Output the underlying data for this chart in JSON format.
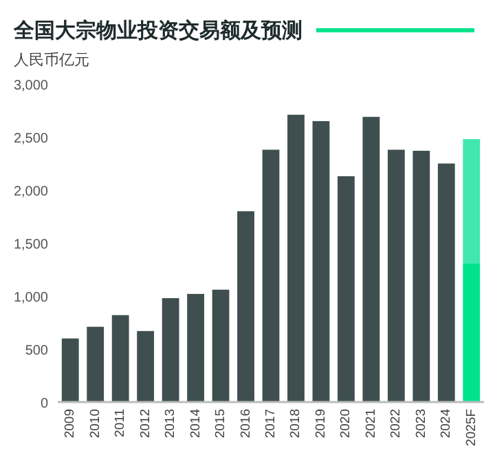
{
  "chart_data": {
    "type": "bar",
    "title": "全国大宗物业投资交易额及预测",
    "ylabel": "人民币亿元",
    "categories": [
      "2009",
      "2010",
      "2011",
      "2012",
      "2013",
      "2014",
      "2015",
      "2016",
      "2017",
      "2018",
      "2019",
      "2020",
      "2021",
      "2022",
      "2023",
      "2024",
      "2025F"
    ],
    "stacked": true,
    "series": [
      {
        "colors": [
          "#3f4f4f",
          "#3f4f4f",
          "#3f4f4f",
          "#3f4f4f",
          "#3f4f4f",
          "#3f4f4f",
          "#3f4f4f",
          "#3f4f4f",
          "#3f4f4f",
          "#3f4f4f",
          "#3f4f4f",
          "#3f4f4f",
          "#3f4f4f",
          "#3f4f4f",
          "#3f4f4f",
          "#3f4f4f",
          "#00e38c"
        ],
        "values": [
          600,
          710,
          820,
          670,
          980,
          1020,
          1060,
          1800,
          2380,
          2710,
          2650,
          2130,
          2690,
          2380,
          2370,
          2250,
          1310
        ]
      },
      {
        "color": "#40e8b0",
        "values": [
          null,
          null,
          null,
          null,
          null,
          null,
          null,
          null,
          null,
          null,
          null,
          null,
          null,
          null,
          null,
          null,
          1170
        ]
      }
    ],
    "ylim": [
      0,
      3000
    ],
    "yticks": [
      {
        "value": 0,
        "label": "0"
      },
      {
        "value": 500,
        "label": "500"
      },
      {
        "value": 1000,
        "label": "1,000"
      },
      {
        "value": 1500,
        "label": "1,500"
      },
      {
        "value": 2000,
        "label": "2,000"
      },
      {
        "value": 2500,
        "label": "2,500"
      },
      {
        "value": 3000,
        "label": "3,000"
      }
    ]
  }
}
